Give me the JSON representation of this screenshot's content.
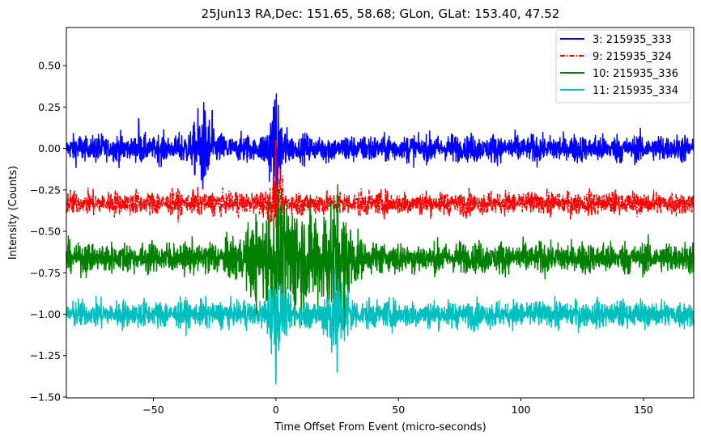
{
  "chart_data": {
    "type": "line",
    "title": "25Jun13 RA,Dec:  151.65,  58.68; GLon, GLat:  153.40,  47.52",
    "xlabel": "Time Offset From Event (micro-seconds)",
    "ylabel": "Intensity (Counts)",
    "xlim": [
      -85.5,
      170.5
    ],
    "ylim": [
      -1.505,
      0.73
    ],
    "xticks": [
      -50,
      0,
      50,
      100,
      150
    ],
    "xtick_labels": [
      "−50",
      "0",
      "50",
      "100",
      "150"
    ],
    "yticks": [
      0.5,
      0.25,
      0.0,
      -0.25,
      -0.5,
      -0.75,
      -1.0,
      -1.25,
      -1.5
    ],
    "ytick_labels": [
      "0.50",
      "0.25",
      "0.00",
      "−0.25",
      "−0.50",
      "−0.75",
      "−1.00",
      "−1.25",
      "−1.50"
    ],
    "legend_position": "top-right",
    "series": [
      {
        "name": "3: 215935_333",
        "legend": " 3: 215935_333",
        "color": "#0000ff",
        "style": "solid",
        "offset": 0.0,
        "noise": 0.035,
        "bursts": [
          {
            "x": -30,
            "width": 4,
            "amp": 0.09
          },
          {
            "x": 0,
            "width": 3,
            "amp": 0.12
          }
        ],
        "spikes": [
          {
            "x": -1,
            "y": 0.25
          },
          {
            "x": -26,
            "y": 0.23
          },
          {
            "x": -56,
            "y": 0.18
          },
          {
            "x": 0.5,
            "y": -0.22
          }
        ]
      },
      {
        "name": "9: 215935_324",
        "legend": " 9: 215935_324",
        "color": "#ff0000",
        "style": "dashdot",
        "offset": -0.33,
        "noise": 0.03,
        "bursts": [
          {
            "x": 0,
            "width": 3,
            "amp": 0.06
          }
        ],
        "spikes": [
          {
            "x": 0,
            "y": 0.05
          },
          {
            "x": -1,
            "y": -0.2
          }
        ]
      },
      {
        "name": "10: 215935_336",
        "legend": "10: 215935_336",
        "color": "#008000",
        "style": "solid",
        "offset": -0.66,
        "noise": 0.04,
        "bursts": [
          {
            "x": 5,
            "width": 16,
            "amp": 0.14
          },
          {
            "x": 25,
            "width": 6,
            "amp": 0.12
          }
        ],
        "spikes": [
          {
            "x": -3,
            "y": -0.33
          },
          {
            "x": 25,
            "y": -0.28
          },
          {
            "x": -8,
            "y": -1.0
          },
          {
            "x": 28,
            "y": -1.08
          }
        ]
      },
      {
        "name": "11: 215935_334",
        "legend": "11: 215935_334",
        "color": "#00bfbf",
        "style": "solid",
        "offset": -1.0,
        "noise": 0.035,
        "bursts": [
          {
            "x": 0,
            "width": 3,
            "amp": 0.1
          },
          {
            "x": 25,
            "width": 5,
            "amp": 0.09
          }
        ],
        "spikes": [
          {
            "x": 0,
            "y": -1.42
          },
          {
            "x": 25,
            "y": -1.35
          },
          {
            "x": -1,
            "y": -0.83
          }
        ]
      }
    ]
  }
}
